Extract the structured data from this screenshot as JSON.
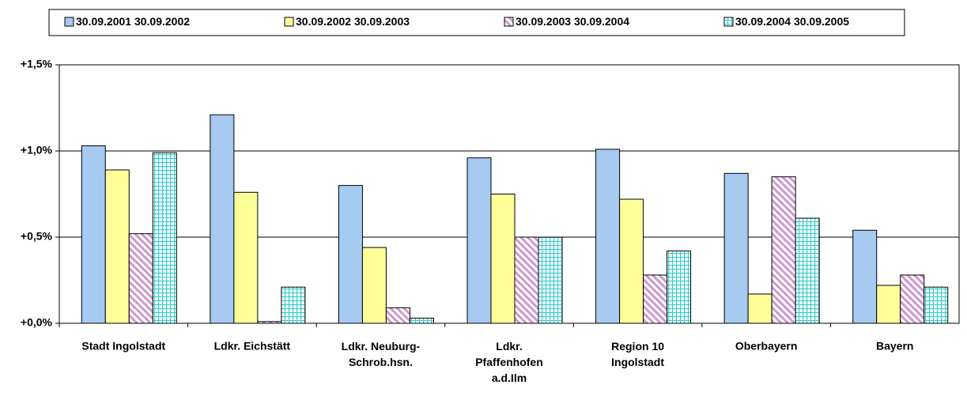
{
  "chart_data": {
    "type": "bar",
    "categories": [
      "Stadt Ingolstadt",
      "Ldkr. Eichstätt",
      "Ldkr. Neuburg-\nSchrob.hsn.",
      "Ldkr.\nPfaffenhofen\na.d.Ilm",
      "Region 10\nIngolstadt",
      "Oberbayern",
      "Bayern"
    ],
    "series": [
      {
        "name": "30.09.2001 30.09.2002",
        "color": "#a6caf0",
        "pattern": "solid",
        "values": [
          1.03,
          1.21,
          0.8,
          0.96,
          1.01,
          0.87,
          0.54
        ]
      },
      {
        "name": "30.09.2002 30.09.2003",
        "color": "#ffff99",
        "pattern": "solid",
        "values": [
          0.89,
          0.76,
          0.44,
          0.75,
          0.72,
          0.17,
          0.22
        ]
      },
      {
        "name": "30.09.2003 30.09.2004",
        "color": "#cc99cc",
        "pattern": "diagonal",
        "values": [
          0.52,
          0.01,
          0.09,
          0.5,
          0.28,
          0.85,
          0.28
        ]
      },
      {
        "name": "30.09.2004 30.09.2005",
        "color": "#33cccc",
        "pattern": "grid",
        "values": [
          0.99,
          0.21,
          0.03,
          0.5,
          0.42,
          0.61,
          0.21
        ]
      }
    ],
    "ylim": [
      0,
      1.5
    ],
    "yticks": [
      {
        "value": 0,
        "label": "+0,0%"
      },
      {
        "value": 0.5,
        "label": "+0,5%"
      },
      {
        "value": 1,
        "label": "+1,0%"
      },
      {
        "value": 1.5,
        "label": "+1,5%"
      }
    ],
    "grid": true,
    "legend": "top"
  }
}
